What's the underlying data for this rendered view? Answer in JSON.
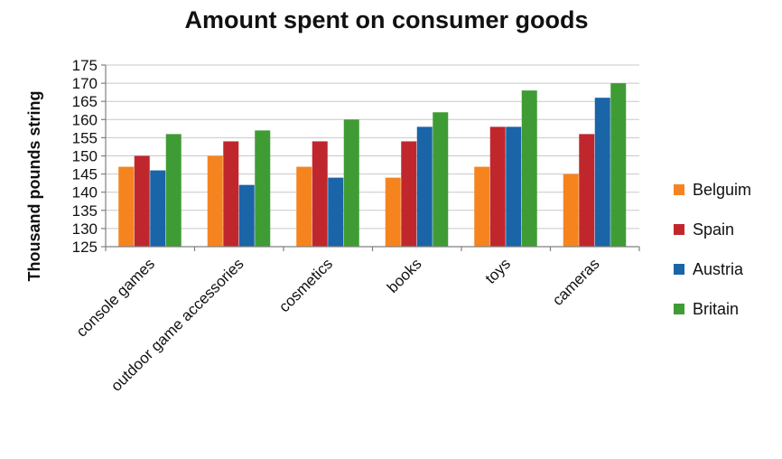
{
  "chart_data": {
    "type": "bar",
    "title": "Amount spent on consumer goods",
    "ylabel": "Thousand pounds string",
    "xlabel": "",
    "ylim": [
      125,
      175
    ],
    "ytick_step": 5,
    "grid": true,
    "legend_position": "right",
    "categories": [
      "console games",
      "outdoor game accessories",
      "cosmetics",
      "books",
      "toys",
      "cameras"
    ],
    "series": [
      {
        "name": "Belguim",
        "color": "#f5841f",
        "values": [
          147,
          150,
          147,
          144,
          147,
          145
        ]
      },
      {
        "name": "Spain",
        "color": "#c0272d",
        "values": [
          150,
          154,
          154,
          154,
          158,
          156
        ]
      },
      {
        "name": "Austria",
        "color": "#1a64a8",
        "values": [
          146,
          142,
          144,
          158,
          158,
          166
        ]
      },
      {
        "name": "Britain",
        "color": "#3f9c35",
        "values": [
          156,
          157,
          160,
          162,
          168,
          170
        ]
      }
    ]
  }
}
